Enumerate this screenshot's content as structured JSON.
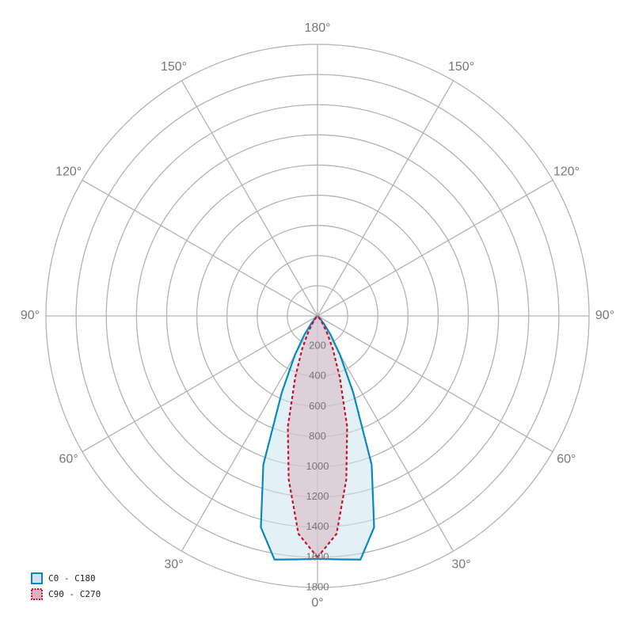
{
  "chart_data": {
    "type": "polar",
    "angles": [
      0,
      5,
      10,
      15,
      20,
      25,
      30,
      35,
      40,
      45,
      50,
      55,
      60,
      65,
      70,
      75,
      80,
      85,
      90
    ],
    "series": [
      {
        "name": "C0 - C180",
        "color": "#0a87bf",
        "fill": "#cce6f1",
        "values": [
          1610,
          1620,
          1640,
          1450,
          1050,
          560,
          300,
          150,
          60,
          20,
          0,
          0,
          0,
          0,
          0,
          0,
          0,
          0,
          0
        ]
      },
      {
        "name": "C90 - C270",
        "color": "#c8102e",
        "fill": "#d9b4c0",
        "dashed": true,
        "values": [
          1600,
          1450,
          1100,
          760,
          430,
          240,
          120,
          50,
          15,
          0,
          0,
          0,
          0,
          0,
          0,
          0,
          0,
          0,
          0
        ]
      }
    ],
    "rlim": [
      0,
      1800
    ],
    "rticks": [
      200,
      400,
      600,
      800,
      1000,
      1200,
      1400,
      1600,
      1800
    ],
    "angle_ticks": [
      {
        "value": 0,
        "label": "0°"
      },
      {
        "value": 30,
        "label": "30°"
      },
      {
        "value": 60,
        "label": "60°"
      },
      {
        "value": 90,
        "label": "90°"
      },
      {
        "value": 120,
        "label": "120°"
      },
      {
        "value": 150,
        "label": "150°"
      },
      {
        "value": 180,
        "label": "180°"
      }
    ],
    "grid": true,
    "legend": "bottom-left"
  }
}
